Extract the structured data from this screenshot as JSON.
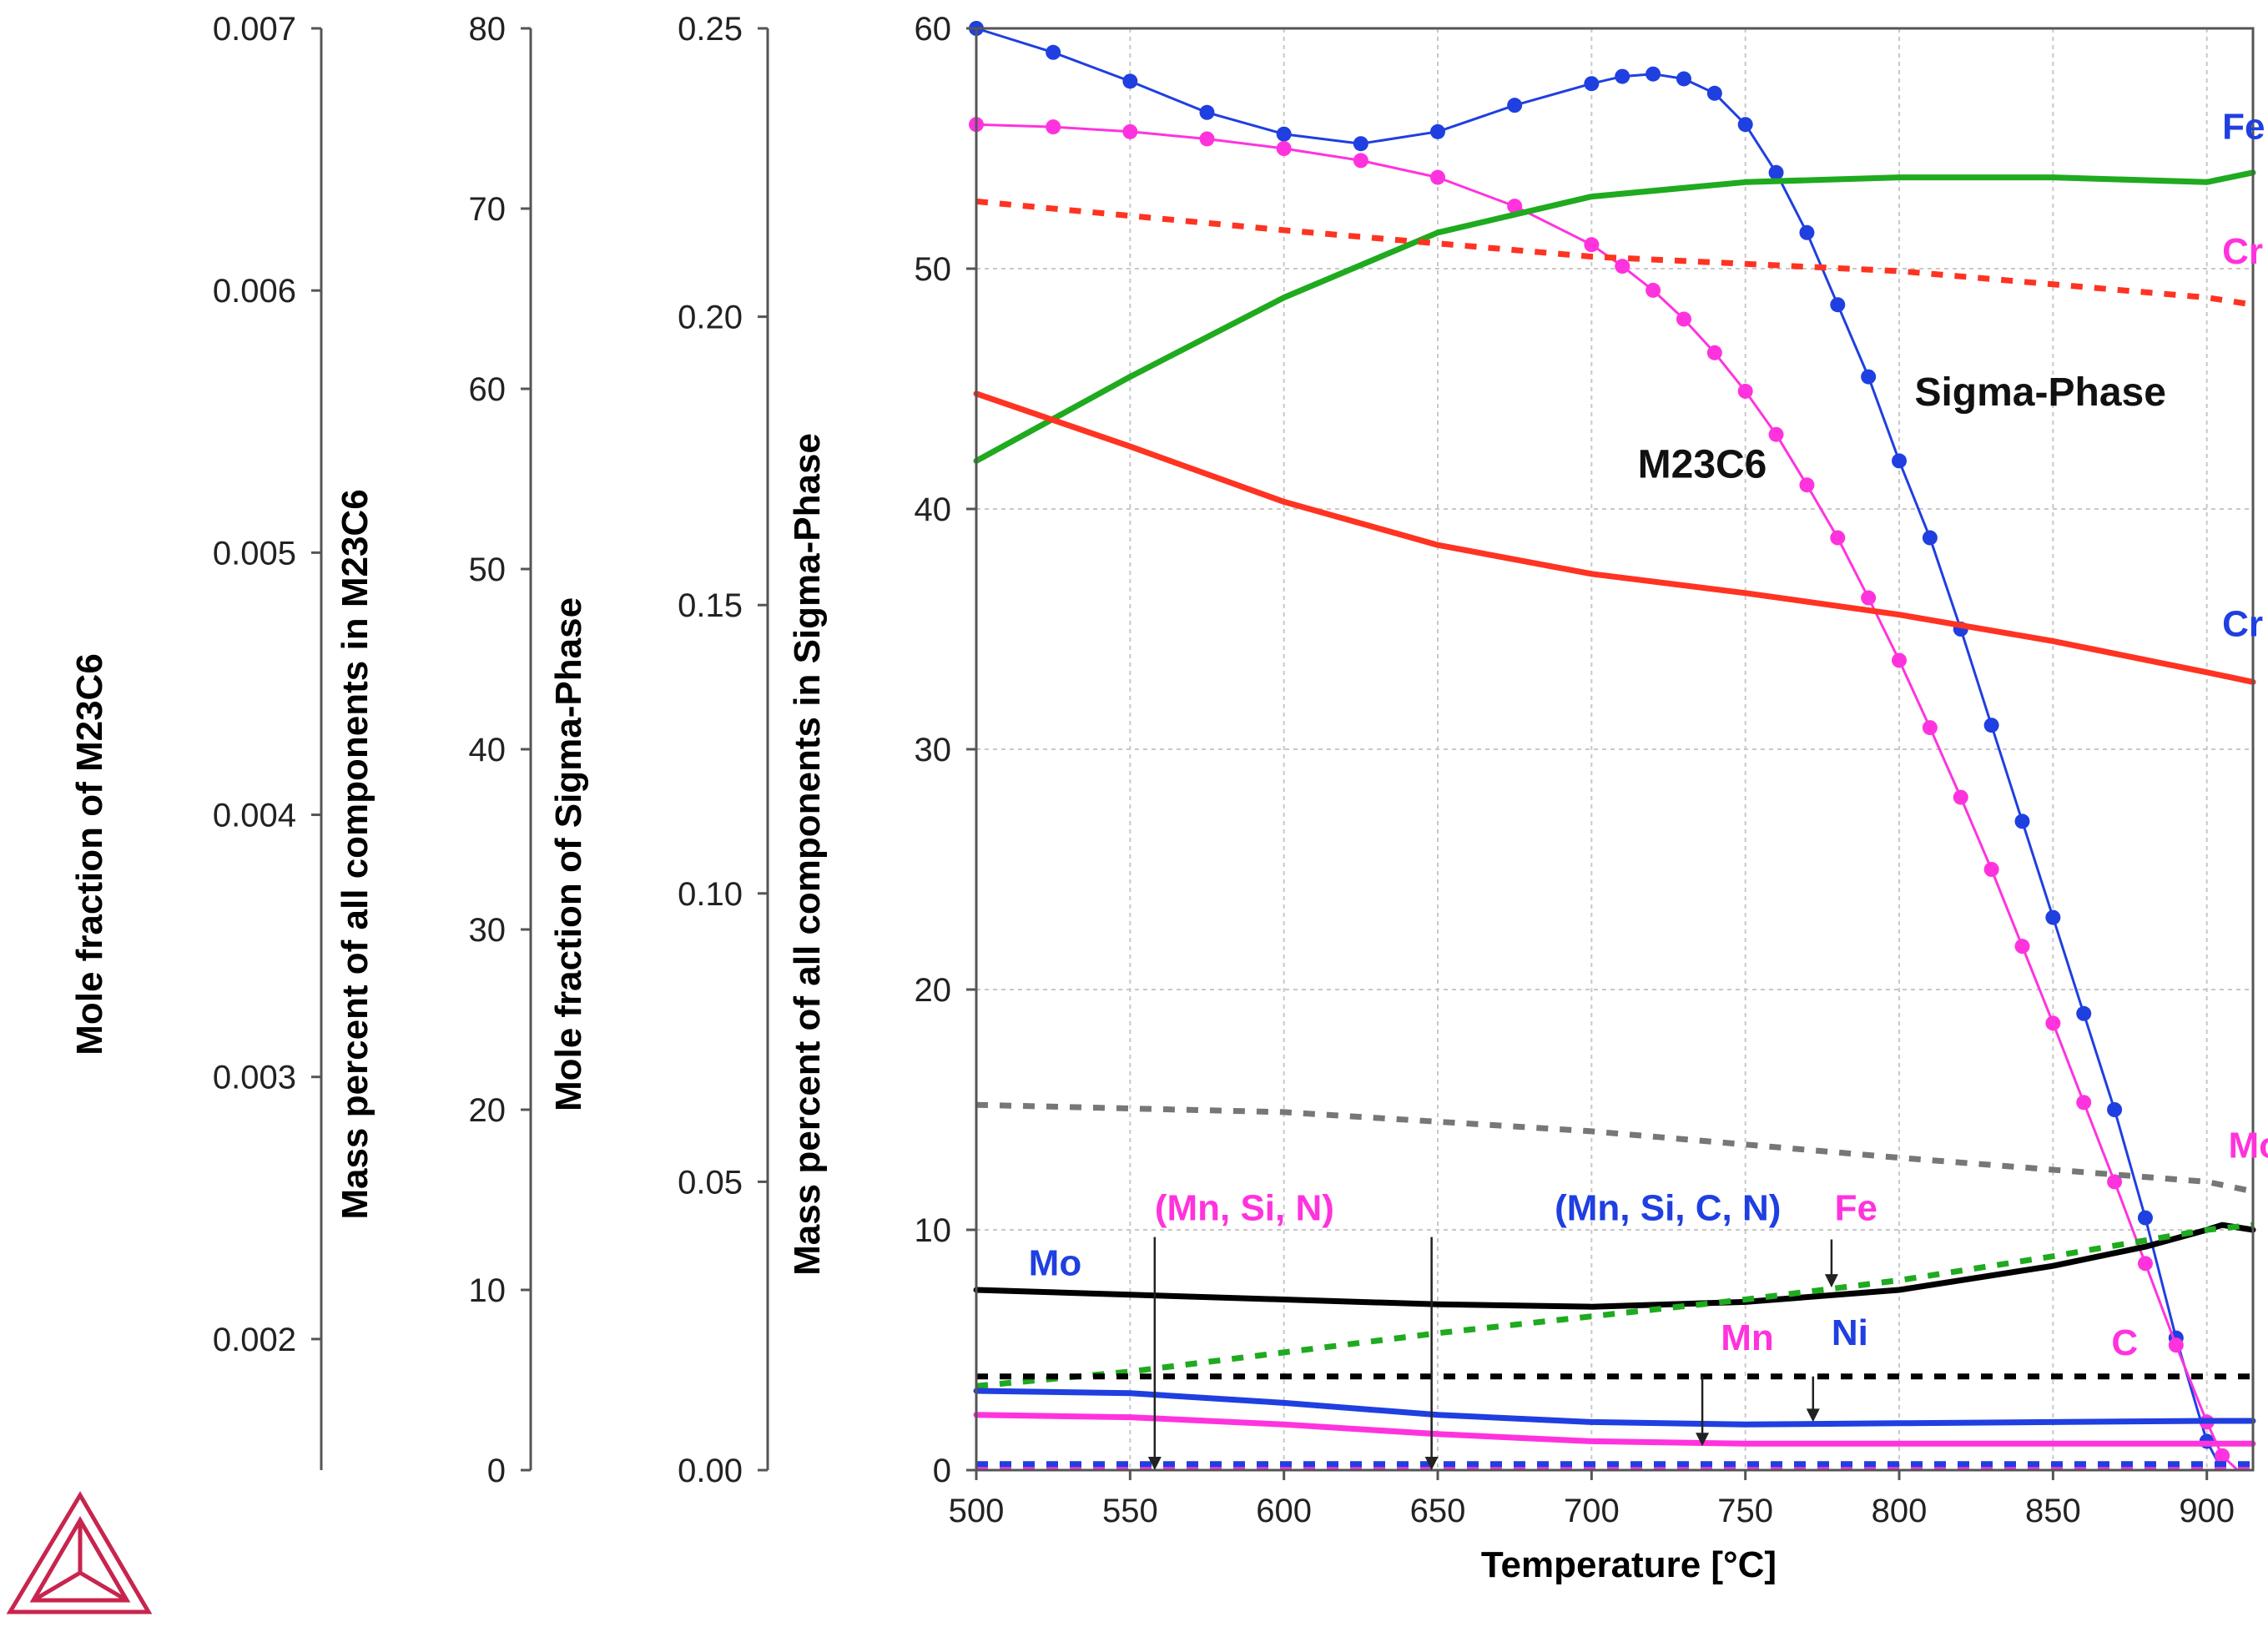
{
  "chart_data": {
    "type": "line",
    "title": "",
    "xlabel": "Temperature [°C]",
    "xlim": [
      500,
      915
    ],
    "x_ticks": [
      "500",
      "550",
      "600",
      "650",
      "700",
      "750",
      "800",
      "850",
      "900"
    ],
    "grid": true,
    "axes": [
      {
        "id": "mole_m23c6",
        "label": "Mole fraction of M23C6",
        "range": [
          0.0015,
          0.007
        ],
        "ticks": [
          "0.002",
          "0.003",
          "0.004",
          "0.005",
          "0.006",
          "0.007"
        ]
      },
      {
        "id": "mass_m23c6",
        "label": "Mass percent of all components in M23C6",
        "range": [
          0,
          80
        ],
        "ticks": [
          "0",
          "10",
          "20",
          "30",
          "40",
          "50",
          "60",
          "70",
          "80"
        ]
      },
      {
        "id": "mole_sigma",
        "label": "Mole fraction of Sigma-Phase",
        "range": [
          0,
          0.25
        ],
        "ticks": [
          "0.00",
          "0.05",
          "0.10",
          "0.15",
          "0.20",
          "0.25"
        ]
      },
      {
        "id": "mass_sigma",
        "label": "Mass percent of all components in Sigma-Phase",
        "range": [
          0,
          60
        ],
        "ticks": [
          "0",
          "10",
          "20",
          "30",
          "40",
          "50",
          "60"
        ]
      }
    ],
    "series": [
      {
        "name": "Sigma-Phase mole fraction",
        "axis": "mass_sigma",
        "color": "#1f3fe0",
        "style": "line-dots",
        "x": [
          500,
          525,
          550,
          575,
          600,
          625,
          650,
          675,
          700,
          710,
          720,
          730,
          740,
          750,
          760,
          770,
          780,
          790,
          800,
          810,
          820,
          830,
          840,
          850,
          860,
          870,
          880,
          890,
          900,
          905
        ],
        "y": [
          60,
          59,
          57.8,
          56.5,
          55.6,
          55.2,
          55.7,
          56.8,
          57.7,
          58.0,
          58.1,
          57.9,
          57.3,
          56,
          54,
          51.5,
          48.5,
          45.5,
          42,
          38.8,
          35,
          31,
          27,
          23,
          19,
          15,
          10.5,
          5.5,
          1.2,
          0
        ]
      },
      {
        "name": "M23C6 mole fraction",
        "axis": "mass_sigma",
        "color": "#ff33dd",
        "style": "line-dots",
        "x": [
          500,
          525,
          550,
          575,
          600,
          625,
          650,
          675,
          700,
          710,
          720,
          730,
          740,
          750,
          760,
          770,
          780,
          790,
          800,
          810,
          820,
          830,
          840,
          850,
          860,
          870,
          880,
          890,
          900,
          905,
          910
        ],
        "y": [
          56,
          55.9,
          55.7,
          55.4,
          55,
          54.5,
          53.8,
          52.6,
          51,
          50.1,
          49.1,
          47.9,
          46.5,
          44.9,
          43.1,
          41,
          38.8,
          36.3,
          33.7,
          30.9,
          28,
          25,
          21.8,
          18.6,
          15.3,
          12,
          8.6,
          5.2,
          2,
          0.6,
          0
        ]
      },
      {
        "name": "Fe in Sigma",
        "axis": "mass_sigma",
        "color": "#1faa1f",
        "style": "solid",
        "x": [
          500,
          550,
          600,
          650,
          700,
          750,
          800,
          850,
          900,
          915
        ],
        "y": [
          42,
          45.5,
          48.8,
          51.5,
          53,
          53.6,
          53.8,
          53.8,
          53.6,
          54
        ]
      },
      {
        "name": "Cr in Sigma",
        "axis": "mass_sigma",
        "color": "#ff3322",
        "style": "solid",
        "x": [
          500,
          550,
          600,
          650,
          700,
          750,
          800,
          850,
          900,
          915
        ],
        "y": [
          44.8,
          42.6,
          40.3,
          38.5,
          37.3,
          36.5,
          35.6,
          34.5,
          33.2,
          32.8
        ]
      },
      {
        "name": "Cr in M23C6",
        "axis": "mass_sigma",
        "color": "#ff3322",
        "style": "dashed",
        "x": [
          500,
          600,
          700,
          800,
          900,
          915
        ],
        "y": [
          52.8,
          51.6,
          50.5,
          49.9,
          48.8,
          48.5
        ]
      },
      {
        "name": "Mo in M23C6",
        "axis": "mass_sigma",
        "color": "#777777",
        "style": "dashed",
        "x": [
          500,
          600,
          700,
          800,
          900,
          915
        ],
        "y": [
          15.2,
          14.9,
          14.1,
          13.0,
          12.0,
          11.6
        ]
      },
      {
        "name": "Mo in Sigma",
        "axis": "mass_sigma",
        "color": "#000000",
        "style": "solid",
        "x": [
          500,
          550,
          600,
          650,
          700,
          750,
          800,
          850,
          880,
          900,
          905,
          915
        ],
        "y": [
          7.5,
          7.3,
          7.1,
          6.9,
          6.8,
          7,
          7.5,
          8.5,
          9.3,
          10,
          10.2,
          10
        ]
      },
      {
        "name": "Fe in M23C6",
        "axis": "mass_sigma",
        "color": "#1faa1f",
        "style": "dashed",
        "x": [
          500,
          550,
          600,
          650,
          700,
          750,
          800,
          850,
          900,
          915
        ],
        "y": [
          3.5,
          4.1,
          4.9,
          5.7,
          6.4,
          7.1,
          7.9,
          8.9,
          10,
          10.2
        ]
      },
      {
        "name": "C in M23C6",
        "axis": "mass_sigma",
        "color": "#000000",
        "style": "dashed",
        "x": [
          500,
          915
        ],
        "y": [
          3.9,
          3.9
        ]
      },
      {
        "name": "Ni in Sigma",
        "axis": "mass_sigma",
        "color": "#1f3fe0",
        "style": "solid",
        "x": [
          500,
          550,
          600,
          650,
          700,
          750,
          800,
          850,
          900,
          915
        ],
        "y": [
          3.3,
          3.2,
          2.8,
          2.3,
          2.0,
          1.9,
          1.95,
          2.0,
          2.05,
          2.05
        ]
      },
      {
        "name": "Mn in Sigma",
        "axis": "mass_sigma",
        "color": "#ff33dd",
        "style": "solid",
        "x": [
          500,
          550,
          600,
          650,
          700,
          750,
          800,
          850,
          900,
          915
        ],
        "y": [
          2.3,
          2.2,
          1.9,
          1.5,
          1.2,
          1.1,
          1.1,
          1.1,
          1.1,
          1.1
        ]
      },
      {
        "name": "(Mn, Si, N) in M23C6",
        "axis": "mass_sigma",
        "color": "#ff33dd",
        "style": "dashed",
        "x": [
          500,
          915
        ],
        "y": [
          0.15,
          0.15
        ]
      },
      {
        "name": "(Mn, Si, C, N) in Sigma",
        "axis": "mass_sigma",
        "color": "#1f3fe0",
        "style": "dashed",
        "x": [
          500,
          915
        ],
        "y": [
          0.25,
          0.25
        ]
      }
    ],
    "annotations": [
      {
        "text": "Fe",
        "x": 905,
        "y": 55.4,
        "color": "#1f3fe0"
      },
      {
        "text": "Cr",
        "x": 905,
        "y": 50.2,
        "color": "#ff33dd"
      },
      {
        "text": "Sigma-Phase",
        "x": 805,
        "y": 44.3,
        "color": "#111111"
      },
      {
        "text": "M23C6",
        "x": 715,
        "y": 41.3,
        "color": "#111111"
      },
      {
        "text": "Cr",
        "x": 905,
        "y": 34.7,
        "color": "#1f3fe0"
      },
      {
        "text": "Mo",
        "x": 907,
        "y": 13.0,
        "color": "#ff33dd"
      },
      {
        "text": "(Mn, Si, N)",
        "x": 558,
        "y": 10.4,
        "color": "#ff33dd"
      },
      {
        "text": "(Mn, Si, C, N)",
        "x": 688,
        "y": 10.4,
        "color": "#1f3fe0"
      },
      {
        "text": "Fe",
        "x": 779,
        "y": 10.4,
        "color": "#ff33dd"
      },
      {
        "text": "Mo",
        "x": 517,
        "y": 8.1,
        "color": "#1f3fe0"
      },
      {
        "text": "Mn",
        "x": 742,
        "y": 5.0,
        "color": "#ff33dd"
      },
      {
        "text": "Ni",
        "x": 778,
        "y": 5.2,
        "color": "#1f3fe0"
      },
      {
        "text": "C",
        "x": 869,
        "y": 4.8,
        "color": "#ff33dd"
      }
    ],
    "arrows": [
      {
        "x": 558,
        "y_from": 9.7,
        "y_to": 0
      },
      {
        "x": 648,
        "y_from": 9.7,
        "y_to": 0
      },
      {
        "x": 778,
        "y_from": 9.6,
        "y_to": 7.6
      },
      {
        "x": 736,
        "y_from": 3.9,
        "y_to": 1.0
      },
      {
        "x": 772,
        "y_from": 3.9,
        "y_to": 2.0
      }
    ]
  }
}
